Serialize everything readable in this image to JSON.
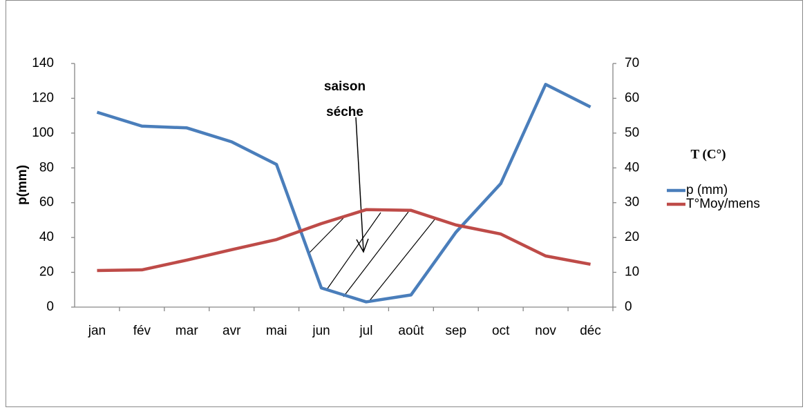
{
  "chart_data": {
    "type": "line",
    "categories": [
      "jan",
      "fév",
      "mar",
      "avr",
      "mai",
      "jun",
      "jul",
      "août",
      "sep",
      "oct",
      "nov",
      "déc"
    ],
    "ylabel": "p(mm)",
    "y2label": "T (C°)",
    "annotation": [
      "saison",
      "séche"
    ],
    "series": [
      {
        "name": "p (mm)",
        "color": "#4a7ebb",
        "values": [
          112,
          104,
          103,
          95,
          82,
          11,
          3,
          7,
          43,
          71,
          128,
          115
        ]
      },
      {
        "name": "T°Moy/mens",
        "color": "#be4b48",
        "axis": "y2",
        "values": [
          10.5,
          10.7,
          13.5,
          16.5,
          19.4,
          24,
          28,
          27.8,
          23.6,
          21,
          14.7,
          12.3
        ]
      }
    ],
    "ylim": [
      0,
      140
    ],
    "yticks": [
      0,
      20,
      40,
      60,
      80,
      100,
      120,
      140
    ],
    "y2lim": [
      0,
      70
    ],
    "y2ticks": [
      0,
      10,
      20,
      30,
      40,
      50,
      60,
      70
    ],
    "legend": "right"
  }
}
